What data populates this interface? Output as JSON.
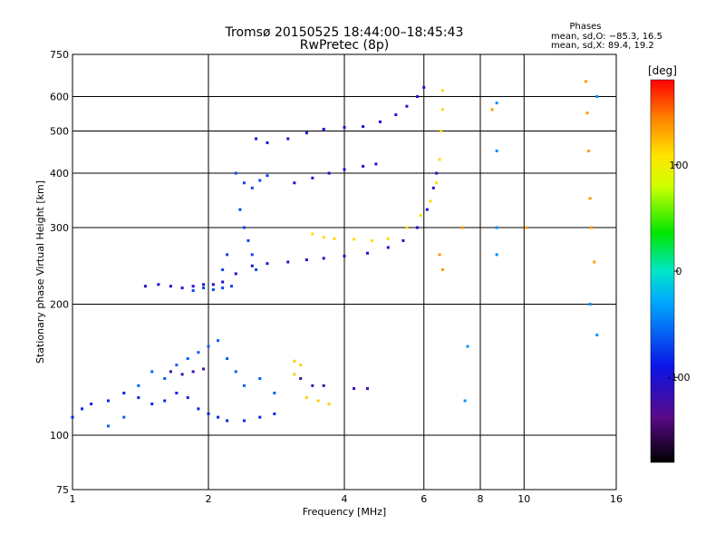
{
  "chart_data": {
    "type": "scatter",
    "title": "Tromsø 20150525 18:44:00–18:45:43",
    "subtitle": "RwPretec (8p)",
    "xlabel": "Frequency [MHz]",
    "ylabel": "Stationary phase Virtual Height [km]",
    "xscale": "log",
    "yscale": "log",
    "xlim": [
      1,
      16
    ],
    "ylim": [
      75,
      750
    ],
    "xticks": [
      1,
      2,
      4,
      6,
      8,
      10,
      16
    ],
    "yticks": [
      75,
      100,
      200,
      300,
      400,
      500,
      600,
      750
    ],
    "grid": true,
    "phases_box": {
      "title": "Phases",
      "line_o": "mean, sd,O: −85.3, 16.5",
      "line_x": "mean, sd,X:  89.4, 19.2"
    },
    "colorbar": {
      "label": "[deg]",
      "ticks": [
        100,
        0,
        -100
      ],
      "range": [
        -180,
        180
      ],
      "colormap": "rainbow (black–purple–blue–cyan–green–yellow–red)"
    },
    "series": [
      {
        "phase_deg": -110,
        "points": [
          [
            1.45,
            220
          ],
          [
            1.55,
            222
          ],
          [
            1.65,
            220
          ],
          [
            1.75,
            218
          ],
          [
            1.85,
            220
          ],
          [
            1.95,
            222
          ],
          [
            2.05,
            222
          ],
          [
            2.15,
            225
          ],
          [
            2.3,
            235
          ],
          [
            2.5,
            245
          ],
          [
            2.7,
            248
          ],
          [
            3.0,
            250
          ],
          [
            3.3,
            253
          ],
          [
            3.6,
            255
          ],
          [
            4.0,
            258
          ],
          [
            4.5,
            262
          ],
          [
            5.0,
            270
          ],
          [
            5.4,
            280
          ],
          [
            5.8,
            300
          ],
          [
            6.1,
            330
          ],
          [
            6.3,
            370
          ],
          [
            6.4,
            400
          ]
        ]
      },
      {
        "phase_deg": -105,
        "points": [
          [
            2.55,
            480
          ],
          [
            2.7,
            470
          ],
          [
            3.0,
            480
          ],
          [
            3.3,
            495
          ],
          [
            3.6,
            505
          ],
          [
            4.0,
            510
          ],
          [
            4.4,
            512
          ],
          [
            4.8,
            525
          ],
          [
            5.2,
            545
          ],
          [
            5.5,
            570
          ],
          [
            5.8,
            600
          ],
          [
            6.0,
            630
          ]
        ]
      },
      {
        "phase_deg": -105,
        "points": [
          [
            3.1,
            380
          ],
          [
            3.4,
            390
          ],
          [
            3.7,
            400
          ],
          [
            4.0,
            408
          ],
          [
            4.4,
            415
          ],
          [
            4.7,
            420
          ]
        ]
      },
      {
        "phase_deg": -80,
        "points": [
          [
            2.3,
            400
          ],
          [
            2.4,
            380
          ],
          [
            2.5,
            370
          ],
          [
            2.6,
            385
          ],
          [
            2.7,
            395
          ],
          [
            2.35,
            330
          ],
          [
            2.4,
            300
          ],
          [
            2.45,
            280
          ],
          [
            2.5,
            260
          ],
          [
            2.55,
            240
          ],
          [
            2.2,
            260
          ],
          [
            2.15,
            240
          ]
        ]
      },
      {
        "phase_deg": -80,
        "points": [
          [
            1.85,
            215
          ],
          [
            1.95,
            218
          ],
          [
            2.05,
            216
          ],
          [
            2.15,
            218
          ],
          [
            2.25,
            220
          ]
        ]
      },
      {
        "phase_deg": 105,
        "points": [
          [
            3.4,
            290
          ],
          [
            3.6,
            285
          ],
          [
            3.8,
            283
          ],
          [
            4.2,
            282
          ],
          [
            4.6,
            280
          ],
          [
            5.0,
            283
          ],
          [
            5.5,
            300
          ],
          [
            5.9,
            320
          ],
          [
            6.2,
            345
          ],
          [
            6.4,
            380
          ],
          [
            6.5,
            430
          ],
          [
            6.55,
            500
          ],
          [
            6.6,
            560
          ],
          [
            6.6,
            620
          ]
        ]
      },
      {
        "phase_deg": -95,
        "points": [
          [
            1.0,
            110
          ],
          [
            1.05,
            115
          ],
          [
            1.1,
            118
          ],
          [
            1.2,
            120
          ],
          [
            1.3,
            125
          ],
          [
            1.4,
            122
          ],
          [
            1.5,
            118
          ],
          [
            1.6,
            120
          ],
          [
            1.7,
            125
          ],
          [
            1.8,
            122
          ],
          [
            1.9,
            115
          ],
          [
            2.0,
            112
          ],
          [
            2.1,
            110
          ],
          [
            2.2,
            108
          ],
          [
            2.4,
            108
          ],
          [
            2.6,
            110
          ],
          [
            2.8,
            112
          ]
        ]
      },
      {
        "phase_deg": -70,
        "points": [
          [
            1.2,
            105
          ],
          [
            1.3,
            110
          ],
          [
            1.4,
            130
          ],
          [
            1.5,
            140
          ],
          [
            1.6,
            135
          ],
          [
            1.7,
            145
          ],
          [
            1.8,
            150
          ],
          [
            1.9,
            155
          ],
          [
            2.0,
            160
          ],
          [
            2.1,
            165
          ],
          [
            2.2,
            150
          ],
          [
            2.3,
            140
          ],
          [
            2.4,
            130
          ],
          [
            2.6,
            135
          ],
          [
            2.8,
            125
          ]
        ]
      },
      {
        "phase_deg": -125,
        "points": [
          [
            1.65,
            140
          ],
          [
            1.75,
            138
          ],
          [
            1.85,
            140
          ],
          [
            1.95,
            142
          ],
          [
            3.2,
            135
          ],
          [
            3.4,
            130
          ],
          [
            3.6,
            130
          ],
          [
            4.2,
            128
          ],
          [
            4.5,
            128
          ]
        ]
      },
      {
        "phase_deg": 110,
        "points": [
          [
            3.1,
            148
          ],
          [
            3.2,
            145
          ],
          [
            3.1,
            138
          ],
          [
            3.3,
            122
          ],
          [
            3.5,
            120
          ],
          [
            3.7,
            118
          ]
        ]
      },
      {
        "phase_deg": -50,
        "points": [
          [
            7.4,
            120
          ],
          [
            7.5,
            160
          ],
          [
            8.7,
            580
          ],
          [
            8.7,
            450
          ],
          [
            8.7,
            300
          ],
          [
            8.7,
            260
          ],
          [
            14.0,
            200
          ],
          [
            14.5,
            170
          ],
          [
            14.5,
            600
          ]
        ]
      },
      {
        "phase_deg": 130,
        "points": [
          [
            6.5,
            260
          ],
          [
            6.6,
            240
          ],
          [
            7.3,
            300
          ],
          [
            8.5,
            560
          ],
          [
            10.1,
            300
          ],
          [
            13.7,
            650
          ],
          [
            13.8,
            550
          ],
          [
            13.9,
            450
          ],
          [
            14.0,
            350
          ],
          [
            14.1,
            300
          ],
          [
            14.3,
            250
          ]
        ]
      }
    ]
  }
}
